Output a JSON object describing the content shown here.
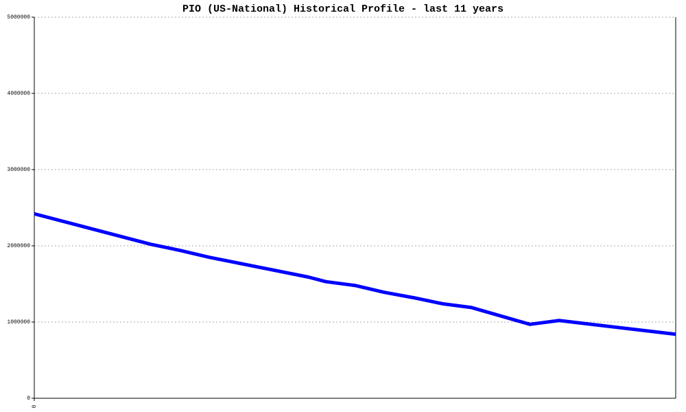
{
  "chart_data": {
    "type": "line",
    "title": "PIO (US-National) Historical Profile - last 11 years",
    "x": [
      0,
      2,
      2.5,
      3,
      4.7,
      5,
      5.5,
      6,
      6.5,
      7,
      7.5,
      8.5,
      9,
      11
    ],
    "series": [
      {
        "name": "PIO",
        "color": "#0000ff",
        "values": [
          2420000,
          2020000,
          1940000,
          1850000,
          1590000,
          1530000,
          1480000,
          1390000,
          1320000,
          1240000,
          1190000,
          970000,
          1020000,
          840000
        ]
      }
    ],
    "xlim": [
      0,
      11
    ],
    "xticks": [
      0
    ],
    "ylim": [
      0,
      5000000
    ],
    "yticks": [
      0,
      1000000,
      2000000,
      3000000,
      4000000,
      5000000
    ],
    "grid": true
  }
}
